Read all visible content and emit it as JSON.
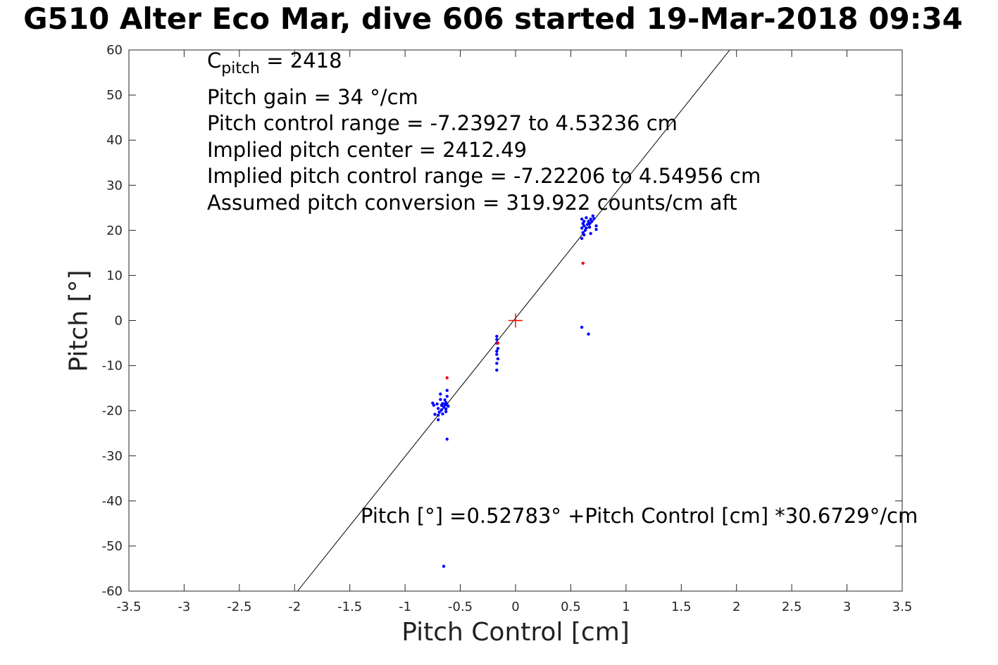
{
  "title": "G510 Alter Eco Mar, dive 606 started 19-Mar-2018 09:34",
  "chart_data": {
    "type": "scatter",
    "xlabel": "Pitch Control [cm]",
    "ylabel": "Pitch [°]",
    "xlim": [
      -3.5,
      3.5
    ],
    "ylim": [
      -60,
      60
    ],
    "xticks": [
      -3.5,
      -3,
      -2.5,
      -2,
      -1.5,
      -1,
      -0.5,
      0,
      0.5,
      1,
      1.5,
      2,
      2.5,
      3,
      3.5
    ],
    "yticks": [
      -60,
      -50,
      -40,
      -30,
      -20,
      -10,
      0,
      10,
      20,
      30,
      40,
      50,
      60
    ],
    "grid": true,
    "annotations": {
      "c_pitch_label": "C",
      "c_pitch_sub": "pitch",
      "c_pitch_value": " = 2418",
      "pitch_gain": "Pitch gain = 34 °/cm",
      "pitch_control_range": "Pitch control range = -7.23927 to 4.53236 cm",
      "implied_pitch_center": "Implied pitch center = 2412.49",
      "implied_pitch_control_range": "Implied pitch control range = -7.22206 to 4.54956 cm",
      "assumed_pitch_conversion": "Assumed pitch conversion = 319.922 counts/cm aft",
      "fit_equation": "Pitch [°] =0.52783° +Pitch Control [cm] *30.6729°/cm"
    },
    "fit_line": {
      "intercept": 0.52783,
      "slope": 30.6729,
      "color": "#000000"
    },
    "center_marker": {
      "x": 0,
      "y": 0,
      "color": "#ff0000"
    },
    "series": [
      {
        "color": "#0000ff",
        "points": [
          [
            0.6,
            22.5
          ],
          [
            0.61,
            21.5
          ],
          [
            0.62,
            21.0
          ],
          [
            0.6,
            20.5
          ],
          [
            0.63,
            20.0
          ],
          [
            0.61,
            19.5
          ],
          [
            0.62,
            19.0
          ],
          [
            0.6,
            18.2
          ],
          [
            0.64,
            22.8
          ],
          [
            0.66,
            22.0
          ],
          [
            0.67,
            21.5
          ],
          [
            0.68,
            22.5
          ],
          [
            0.69,
            22.0
          ],
          [
            0.7,
            23.2
          ],
          [
            0.71,
            22.6
          ],
          [
            0.65,
            21.3
          ],
          [
            0.67,
            20.7
          ],
          [
            0.73,
            21.0
          ],
          [
            0.73,
            20.2
          ],
          [
            0.68,
            19.3
          ],
          [
            0.64,
            20.5
          ],
          [
            0.62,
            22.0
          ],
          [
            0.6,
            -1.5
          ],
          [
            0.66,
            -3.0
          ],
          [
            -0.17,
            -3.5
          ],
          [
            -0.17,
            -4.2
          ],
          [
            -0.17,
            -5.0
          ],
          [
            -0.16,
            -6.2
          ],
          [
            -0.17,
            -6.8
          ],
          [
            -0.17,
            -7.5
          ],
          [
            -0.16,
            -8.5
          ],
          [
            -0.17,
            -9.5
          ],
          [
            -0.17,
            -11.0
          ],
          [
            -0.75,
            -18.3
          ],
          [
            -0.74,
            -18.8
          ],
          [
            -0.73,
            -20.8
          ],
          [
            -0.71,
            -18.5
          ],
          [
            -0.7,
            -19.5
          ],
          [
            -0.7,
            -21.0
          ],
          [
            -0.7,
            -22.0
          ],
          [
            -0.69,
            -20.3
          ],
          [
            -0.68,
            -17.5
          ],
          [
            -0.68,
            -16.3
          ],
          [
            -0.67,
            -18.8
          ],
          [
            -0.67,
            -19.8
          ],
          [
            -0.66,
            -18.4
          ],
          [
            -0.66,
            -20.7
          ],
          [
            -0.65,
            -19.2
          ],
          [
            -0.64,
            -18.6
          ],
          [
            -0.64,
            -17.6
          ],
          [
            -0.63,
            -18.2
          ],
          [
            -0.63,
            -19.6
          ],
          [
            -0.62,
            -16.8
          ],
          [
            -0.62,
            -15.5
          ],
          [
            -0.62,
            -18.7
          ],
          [
            -0.61,
            -19.0
          ],
          [
            -0.63,
            -20.2
          ],
          [
            -0.62,
            -26.3
          ],
          [
            -0.65,
            -54.5
          ]
        ]
      },
      {
        "color": "#ff0000",
        "points": [
          [
            0.61,
            12.7
          ],
          [
            -0.62,
            -12.7
          ],
          [
            -0.16,
            -5.0
          ]
        ]
      }
    ]
  }
}
